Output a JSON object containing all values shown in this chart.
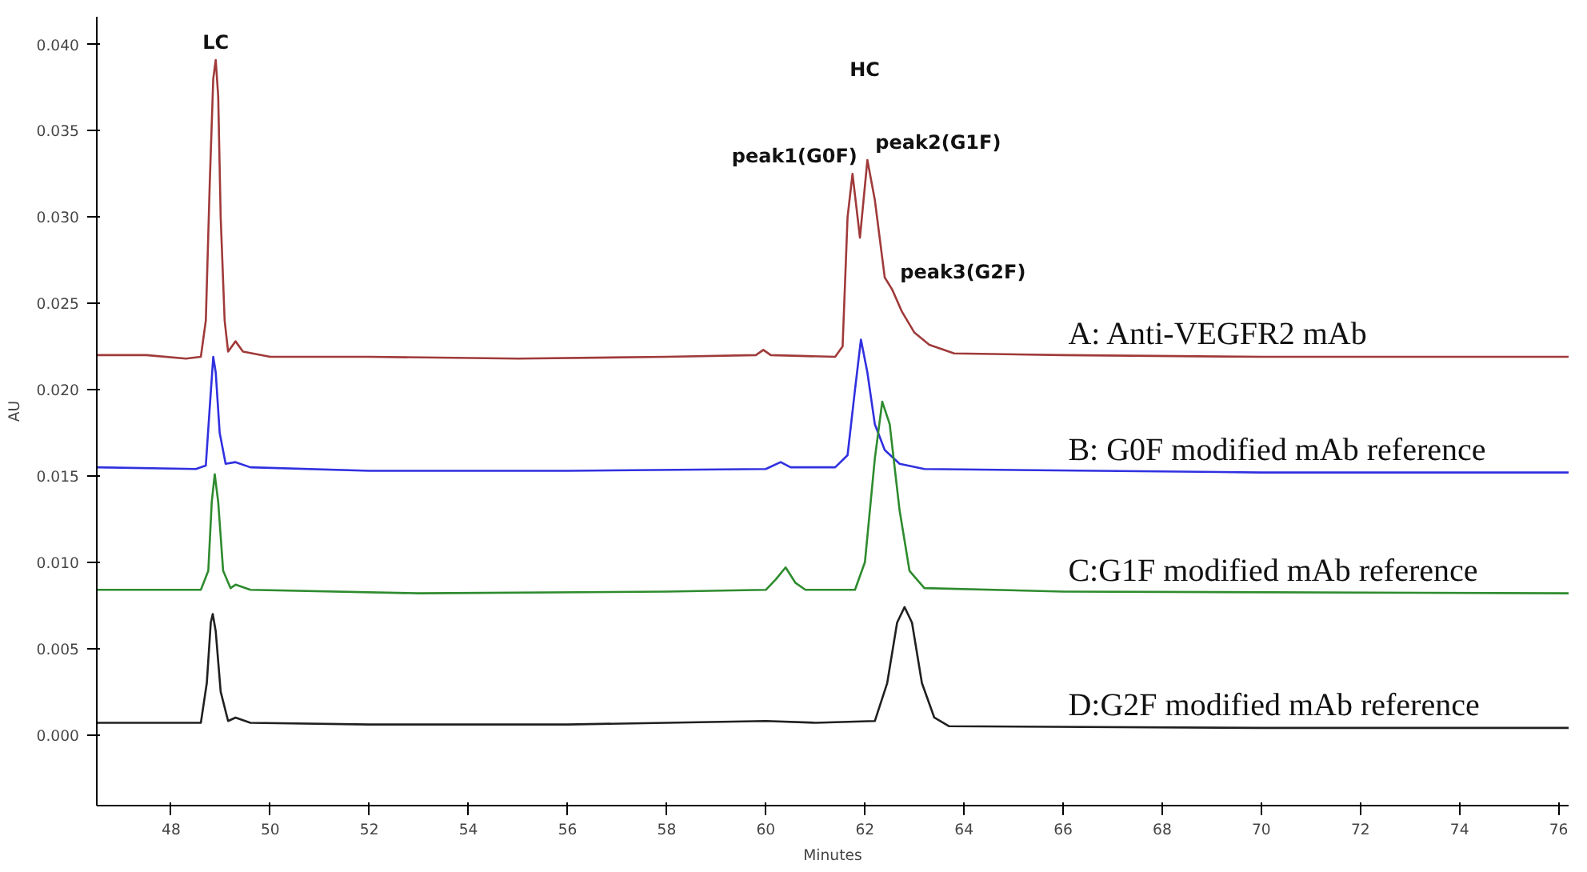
{
  "chart_data": {
    "type": "line",
    "xlabel": "Minutes",
    "ylabel": "AU",
    "xlim": [
      46.5,
      76.2
    ],
    "ylim": [
      -0.0041,
      0.0416
    ],
    "xticks": [
      48,
      50,
      52,
      54,
      56,
      58,
      60,
      62,
      64,
      66,
      68,
      70,
      72,
      74,
      76
    ],
    "yticks": [
      {
        "value": 0,
        "label": "0.000"
      },
      {
        "value": 0.005,
        "label": "0.005"
      },
      {
        "value": 0.01,
        "label": "0.010"
      },
      {
        "value": 0.015,
        "label": "0.015"
      },
      {
        "value": 0.02,
        "label": "0.020"
      },
      {
        "value": 0.025,
        "label": "0.025"
      },
      {
        "value": 0.03,
        "label": "0.030"
      },
      {
        "value": 0.035,
        "label": "0.035"
      },
      {
        "value": 0.04,
        "label": "0.040"
      }
    ],
    "grid": false,
    "marker": "none",
    "line_style": "solid",
    "series": [
      {
        "name": "A: Anti-VEGFR2 mAb",
        "color": "#a03a3a",
        "x": [
          46.5,
          47.5,
          48.3,
          48.6,
          48.7,
          48.78,
          48.85,
          48.9,
          48.95,
          49.0,
          49.08,
          49.15,
          49.3,
          49.45,
          50,
          52,
          55,
          58,
          59.8,
          59.95,
          60.1,
          61.4,
          61.55,
          61.65,
          61.75,
          61.9,
          62.05,
          62.2,
          62.4,
          62.55,
          62.75,
          63.0,
          63.3,
          63.8,
          66,
          70,
          76.2
        ],
        "values": [
          0.022,
          0.022,
          0.0218,
          0.0219,
          0.024,
          0.032,
          0.038,
          0.0391,
          0.037,
          0.03,
          0.024,
          0.0222,
          0.0228,
          0.0222,
          0.0219,
          0.0219,
          0.0218,
          0.0219,
          0.022,
          0.0223,
          0.022,
          0.0219,
          0.0225,
          0.03,
          0.0325,
          0.0288,
          0.0333,
          0.031,
          0.0265,
          0.0258,
          0.0245,
          0.0233,
          0.0226,
          0.0221,
          0.022,
          0.0219,
          0.0219
        ]
      },
      {
        "name": "B: G0F modified mAb reference",
        "color": "#3030e0",
        "x": [
          46.5,
          48.5,
          48.7,
          48.78,
          48.85,
          48.9,
          48.98,
          49.1,
          49.3,
          49.6,
          52,
          56,
          60,
          60.3,
          60.5,
          61.4,
          61.65,
          61.8,
          61.92,
          62.05,
          62.2,
          62.4,
          62.7,
          63.2,
          70,
          76.2
        ],
        "values": [
          0.0155,
          0.0154,
          0.0156,
          0.019,
          0.0219,
          0.021,
          0.0175,
          0.0157,
          0.0158,
          0.0155,
          0.0153,
          0.0153,
          0.0154,
          0.0158,
          0.0155,
          0.0155,
          0.0162,
          0.02,
          0.0229,
          0.021,
          0.018,
          0.0165,
          0.0157,
          0.0154,
          0.0152,
          0.0152
        ]
      },
      {
        "name": "C:G1F modified mAb reference",
        "color": "#2e8b2e",
        "x": [
          46.5,
          48.6,
          48.75,
          48.82,
          48.88,
          48.95,
          49.05,
          49.2,
          49.3,
          49.6,
          53,
          58,
          60,
          60.2,
          60.4,
          60.6,
          60.8,
          61.8,
          62.0,
          62.2,
          62.35,
          62.5,
          62.7,
          62.9,
          63.2,
          66,
          76.2
        ],
        "values": [
          0.0084,
          0.0084,
          0.0095,
          0.0135,
          0.0151,
          0.0135,
          0.0095,
          0.0085,
          0.0087,
          0.0084,
          0.0082,
          0.0083,
          0.0084,
          0.009,
          0.0097,
          0.0088,
          0.0084,
          0.0084,
          0.01,
          0.016,
          0.0193,
          0.018,
          0.013,
          0.0095,
          0.0085,
          0.0083,
          0.0082
        ]
      },
      {
        "name": "D:G2F modified mAb reference",
        "color": "#202020",
        "x": [
          46.5,
          48.6,
          48.72,
          48.8,
          48.84,
          48.9,
          49.0,
          49.15,
          49.3,
          49.6,
          52,
          56,
          58,
          60,
          61,
          62.2,
          62.45,
          62.65,
          62.8,
          62.95,
          63.15,
          63.4,
          63.7,
          70,
          76.2
        ],
        "values": [
          0.0007,
          0.0007,
          0.003,
          0.0065,
          0.007,
          0.006,
          0.0025,
          0.0008,
          0.001,
          0.0007,
          0.0006,
          0.0006,
          0.0007,
          0.0008,
          0.0007,
          0.0008,
          0.003,
          0.0065,
          0.0074,
          0.0065,
          0.003,
          0.001,
          0.0005,
          0.0004,
          0.0004
        ]
      }
    ],
    "annotations": [
      {
        "text": "LC",
        "x": 48.9,
        "y": 0.0391
      },
      {
        "text": "peak1(G0F)",
        "x": 61.75,
        "y": 0.0325
      },
      {
        "text": "peak2(G1F)",
        "x": 62.05,
        "y": 0.0333
      },
      {
        "text": "peak3(G2F)",
        "x": 62.55,
        "y": 0.0258
      },
      "HC"
    ]
  }
}
